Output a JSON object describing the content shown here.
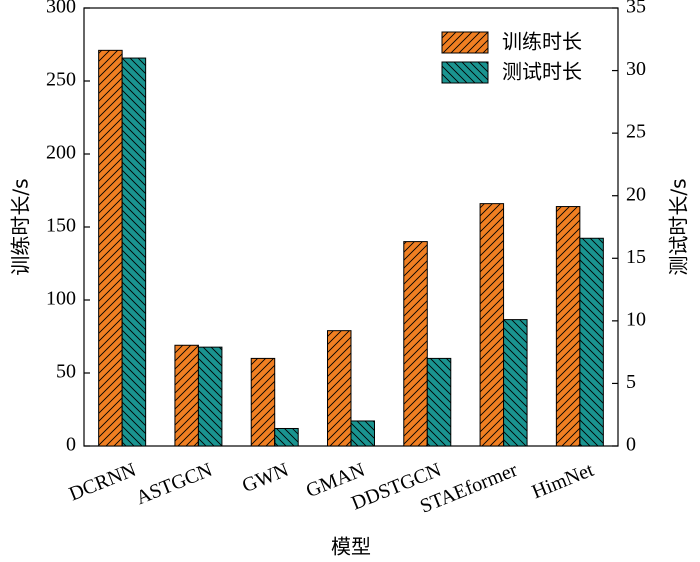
{
  "chart_data": {
    "type": "bar",
    "categories": [
      "DCRNN",
      "ASTGCN",
      "GWN",
      "GMAN",
      "DDSTGCN",
      "STAEformer",
      "HimNet"
    ],
    "series": [
      {
        "name": "训练时长",
        "axis": "left",
        "color": "#F07F22",
        "hatch": "forward-diagonal",
        "values": [
          271,
          69,
          60,
          79,
          140,
          166,
          164
        ]
      },
      {
        "name": "测试时长",
        "axis": "right",
        "color": "#1A9490",
        "hatch": "backward-diagonal",
        "values": [
          31.0,
          7.9,
          1.4,
          2.0,
          7.0,
          10.1,
          16.6
        ]
      }
    ],
    "xlabel": "模型",
    "ylabel_left": "训练时长/s",
    "ylabel_right": "测试时长/s",
    "ylim_left": [
      0,
      300
    ],
    "yticks_left": [
      0,
      50,
      100,
      150,
      200,
      250,
      300
    ],
    "ylim_right": [
      0,
      35
    ],
    "yticks_right": [
      0,
      5,
      10,
      15,
      20,
      25,
      30,
      35
    ],
    "grid": false,
    "legend_position": "top-right"
  }
}
